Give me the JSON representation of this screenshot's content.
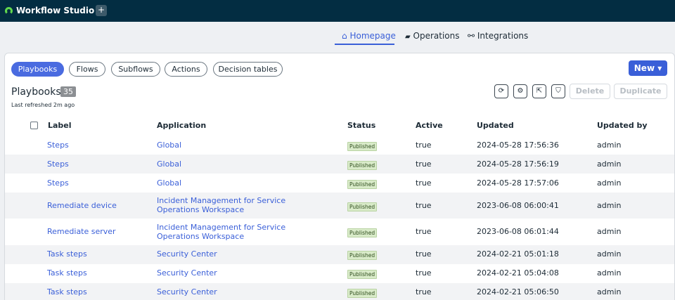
{
  "app": {
    "title": "Workflow Studio",
    "add_tab": "+"
  },
  "nav": {
    "homepage": "Homepage",
    "operations": "Operations",
    "integrations": "Integrations"
  },
  "filters": [
    "Playbooks",
    "Flows",
    "Subflows",
    "Actions",
    "Decision tables"
  ],
  "new_button": "New ▾",
  "section": {
    "title": "Playbooks",
    "count": "35",
    "refreshed": "Last refreshed 2m ago"
  },
  "toolbar": {
    "delete": "Delete",
    "duplicate": "Duplicate"
  },
  "columns": {
    "label": "Label",
    "application": "Application",
    "status": "Status",
    "active": "Active",
    "updated": "Updated",
    "updated_by": "Updated by"
  },
  "rows": [
    {
      "label": "Steps",
      "application": "Global",
      "status": "Published",
      "active": "true",
      "updated": "2024-05-28 17:56:36",
      "updated_by": "admin"
    },
    {
      "label": "Steps",
      "application": "Global",
      "status": "Published",
      "active": "true",
      "updated": "2024-05-28 17:56:19",
      "updated_by": "admin"
    },
    {
      "label": "Steps",
      "application": "Global",
      "status": "Published",
      "active": "true",
      "updated": "2024-05-28 17:57:06",
      "updated_by": "admin"
    },
    {
      "label": "Remediate device",
      "application": "Incident Management for Service Operations Workspace",
      "status": "Published",
      "active": "true",
      "updated": "2023-06-08 06:00:41",
      "updated_by": "admin"
    },
    {
      "label": "Remediate server",
      "application": "Incident Management for Service Operations Workspace",
      "status": "Published",
      "active": "true",
      "updated": "2023-06-08 06:01:44",
      "updated_by": "admin"
    },
    {
      "label": "Task steps",
      "application": "Security Center",
      "status": "Published",
      "active": "true",
      "updated": "2024-02-21 05:01:18",
      "updated_by": "admin"
    },
    {
      "label": "Task steps",
      "application": "Security Center",
      "status": "Published",
      "active": "true",
      "updated": "2024-02-21 05:04:08",
      "updated_by": "admin"
    },
    {
      "label": "Task steps",
      "application": "Security Center",
      "status": "Published",
      "active": "true",
      "updated": "2024-02-21 05:06:50",
      "updated_by": "admin"
    }
  ]
}
